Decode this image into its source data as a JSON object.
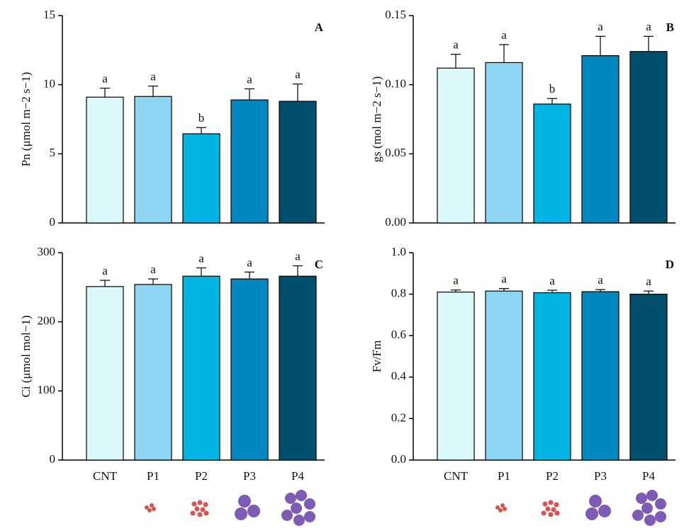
{
  "chart_data": [
    {
      "type": "bar",
      "panel": "A",
      "y_label": "Pn (μmol m−2 s−1)",
      "values": [
        9.1,
        9.15,
        6.45,
        8.9,
        8.8
      ],
      "errors": [
        0.65,
        0.75,
        0.45,
        0.8,
        1.25
      ],
      "letters": [
        "a",
        "a",
        "b",
        "a",
        "a"
      ],
      "colors": [
        "#dbf8fb",
        "#8dd5f2",
        "#00b4e4",
        "#0087c0",
        "#004f6c"
      ],
      "ylim": [
        0,
        15
      ],
      "yticks": [
        0,
        5,
        10,
        15
      ]
    },
    {
      "type": "bar",
      "panel": "B",
      "y_label": "gs (mol m−2 s−1)",
      "values": [
        0.112,
        0.116,
        0.086,
        0.121,
        0.124
      ],
      "errors": [
        0.01,
        0.013,
        0.004,
        0.014,
        0.011
      ],
      "letters": [
        "a",
        "a",
        "b",
        "a",
        "a"
      ],
      "colors": [
        "#dbf8fb",
        "#8dd5f2",
        "#00b4e4",
        "#0087c0",
        "#004f6c"
      ],
      "ylim": [
        0,
        0.15
      ],
      "yticks": [
        {
          "value": 0,
          "label": "0.00"
        },
        0.05,
        {
          "value": 0.1,
          "label": "0.10"
        },
        0.15
      ]
    },
    {
      "type": "bar",
      "panel": "C",
      "y_label": "Ci (μmol mol−1)",
      "categories": [
        "CNT",
        "P1",
        "P2",
        "P3",
        "P4"
      ],
      "values": [
        251,
        254,
        266,
        262,
        266
      ],
      "errors": [
        9,
        8,
        12,
        10,
        15
      ],
      "letters": [
        "a",
        "a",
        "a",
        "a",
        "a"
      ],
      "colors": [
        "#dbf8fb",
        "#8dd5f2",
        "#00b4e4",
        "#0087c0",
        "#004f6c"
      ],
      "ylim": [
        0,
        300
      ],
      "yticks": [
        0,
        100,
        200,
        300
      ]
    },
    {
      "type": "bar",
      "panel": "D",
      "y_label": "Fv/Fm",
      "categories": [
        "CNT",
        "P1",
        "P2",
        "P3",
        "P4"
      ],
      "values": [
        0.81,
        0.815,
        0.807,
        0.812,
        0.8
      ],
      "errors": [
        0.01,
        0.012,
        0.012,
        0.01,
        0.015
      ],
      "letters": [
        "a",
        "a",
        "a",
        "a",
        "a"
      ],
      "colors": [
        "#dbf8fb",
        "#8dd5f2",
        "#00b4e4",
        "#0087c0",
        "#004f6c"
      ],
      "ylim": [
        0,
        1
      ],
      "yticks": [
        {
          "value": 0,
          "label": "0.0"
        },
        0.2,
        0.4,
        0.6,
        0.8,
        {
          "value": 1,
          "label": "1.0"
        }
      ]
    }
  ]
}
